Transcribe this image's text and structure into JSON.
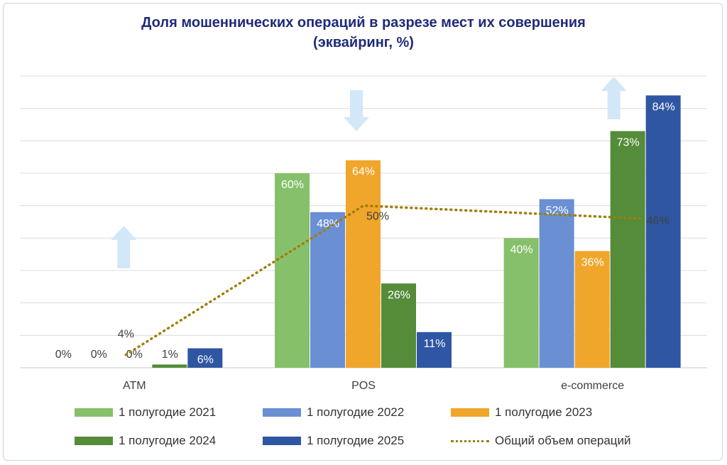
{
  "chart_data": {
    "type": "bar",
    "title_line1": "Доля мошеннических операций в разрезе мест их совершения",
    "title_line2": "(эквайринг, %)",
    "categories": [
      "ATM",
      "POS",
      "e-commerce"
    ],
    "ylim": [
      0,
      90
    ],
    "series": [
      {
        "name": "1 полугодие 2021",
        "color": "#86c06a",
        "values": [
          0,
          60,
          40
        ],
        "labels": [
          "0%",
          "60%",
          "40%"
        ]
      },
      {
        "name": "1 полугодие 2022",
        "color": "#6a8fd3",
        "values": [
          0,
          48,
          52
        ],
        "labels": [
          "0%",
          "48%",
          "52%"
        ]
      },
      {
        "name": "1 полугодие 2023",
        "color": "#efa62a",
        "values": [
          0,
          64,
          36
        ],
        "labels": [
          "0%",
          "64%",
          "36%"
        ]
      },
      {
        "name": "1 полугодие 2024",
        "color": "#548c3a",
        "values": [
          1,
          26,
          73
        ],
        "labels": [
          "1%",
          "26%",
          "73%"
        ]
      },
      {
        "name": "1 полугодие 2025",
        "color": "#2f56a2",
        "values": [
          6,
          11,
          84
        ],
        "labels": [
          "6%",
          "11%",
          "84%"
        ]
      }
    ],
    "line": {
      "name": "Общий объем операций",
      "color": "#a07d0a",
      "values": [
        4,
        50,
        46
      ],
      "labels": [
        "4%",
        "50%",
        "46%"
      ]
    },
    "trend_arrows": [
      "up",
      "down",
      "up"
    ],
    "arrow_color": "#d2e7f8",
    "grid": true
  }
}
